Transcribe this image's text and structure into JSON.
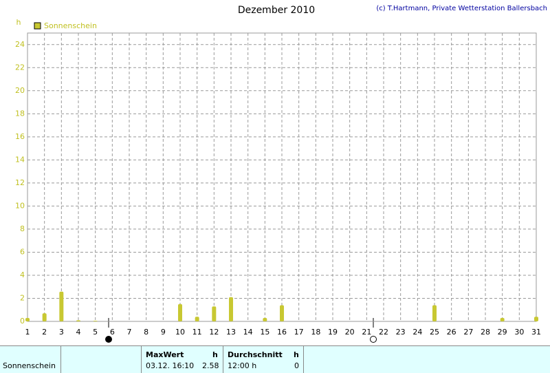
{
  "chart_data": {
    "type": "bar",
    "title": "Dezember 2010",
    "credit": "(c) T.Hartmann, Private Wetterstation Ballersbach",
    "y_label": "h",
    "categories": [
      "1",
      "2",
      "3",
      "4",
      "5",
      "6",
      "7",
      "8",
      "9",
      "10",
      "11",
      "12",
      "13",
      "14",
      "15",
      "16",
      "17",
      "18",
      "19",
      "20",
      "21",
      "22",
      "23",
      "24",
      "25",
      "26",
      "27",
      "28",
      "29",
      "30",
      "31"
    ],
    "series": [
      {
        "name": "Sonnenschein",
        "color": "#c8c832",
        "values": [
          0.3,
          0.7,
          2.58,
          0.1,
          0.05,
          0,
          0,
          0,
          0,
          1.5,
          0.4,
          1.3,
          2.1,
          0,
          0.3,
          1.4,
          0,
          0,
          0,
          0,
          0,
          0,
          0,
          0,
          1.4,
          0,
          0,
          0,
          0.3,
          0,
          0.4
        ]
      }
    ],
    "ylim": [
      0,
      25
    ],
    "yticks": [
      0,
      2,
      4,
      6,
      8,
      10,
      12,
      14,
      16,
      18,
      20,
      22,
      24
    ],
    "grid": true,
    "legend": "top-left"
  },
  "table": {
    "headers": [
      "MaxWert",
      "h",
      "Durchschnitt",
      "h"
    ],
    "rows": [
      [
        "Sonnenschein",
        "03.12.  16:10",
        "2.58",
        "12:00 h",
        "0"
      ]
    ]
  }
}
